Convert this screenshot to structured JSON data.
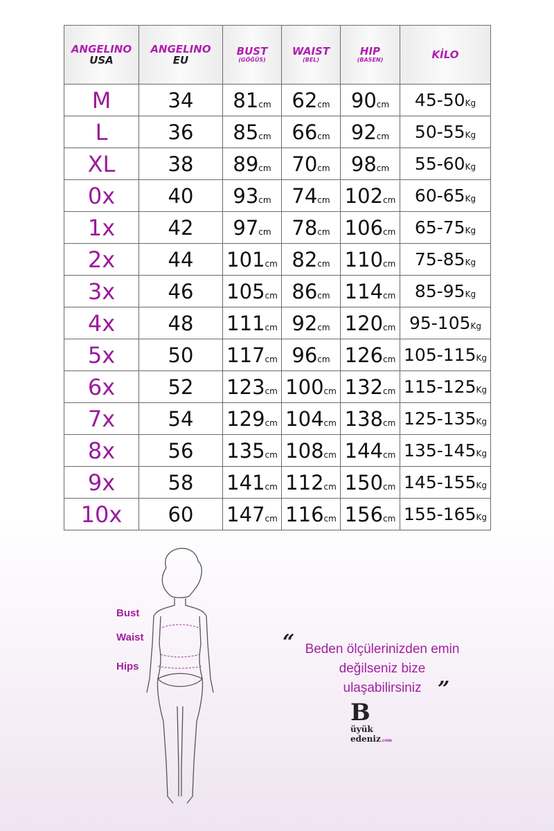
{
  "table": {
    "headers": [
      {
        "line1": "ANGELINO",
        "line2": "USA",
        "sub": ""
      },
      {
        "line1": "ANGELINO",
        "line2": "EU",
        "sub": ""
      },
      {
        "line1": "BUST",
        "line2": "",
        "sub": "(GÖĞÜS)"
      },
      {
        "line1": "WAIST",
        "line2": "",
        "sub": "(BEL)"
      },
      {
        "line1": "HIP",
        "line2": "",
        "sub": "(BASEN)"
      },
      {
        "line1": "KİLO",
        "line2": "",
        "sub": ""
      }
    ],
    "cm_unit": "cm",
    "kg_unit": "Kg",
    "rows": [
      [
        "M",
        "34",
        "81",
        "62",
        "90",
        "45-50"
      ],
      [
        "L",
        "36",
        "85",
        "66",
        "92",
        "50-55"
      ],
      [
        "XL",
        "38",
        "89",
        "70",
        "98",
        "55-60"
      ],
      [
        "0x",
        "40",
        "93",
        "74",
        "102",
        "60-65"
      ],
      [
        "1x",
        "42",
        "97",
        "78",
        "106",
        "65-75"
      ],
      [
        "2x",
        "44",
        "101",
        "82",
        "110",
        "75-85"
      ],
      [
        "3x",
        "46",
        "105",
        "86",
        "114",
        "85-95"
      ],
      [
        "4x",
        "48",
        "111",
        "92",
        "120",
        "95-105"
      ],
      [
        "5x",
        "50",
        "117",
        "96",
        "126",
        "105-115"
      ],
      [
        "6x",
        "52",
        "123",
        "100",
        "132",
        "115-125"
      ],
      [
        "7x",
        "54",
        "129",
        "104",
        "138",
        "125-135"
      ],
      [
        "8x",
        "56",
        "135",
        "108",
        "144",
        "135-145"
      ],
      [
        "9x",
        "58",
        "141",
        "112",
        "150",
        "145-155"
      ],
      [
        "10x",
        "60",
        "147",
        "116",
        "156",
        "155-165"
      ]
    ]
  },
  "figure_labels": {
    "bust": "Bust",
    "waist": "Waist",
    "hips": "Hips"
  },
  "quote": {
    "open": "“",
    "text": "Beden ölçülerinizden emin değilseniz bize ulaşabilirsiniz",
    "close": "”"
  },
  "logo": {
    "text": "Büyük Bedeniz.com"
  },
  "colors": {
    "accent": "#a0229f",
    "border": "#6a6a6a"
  }
}
